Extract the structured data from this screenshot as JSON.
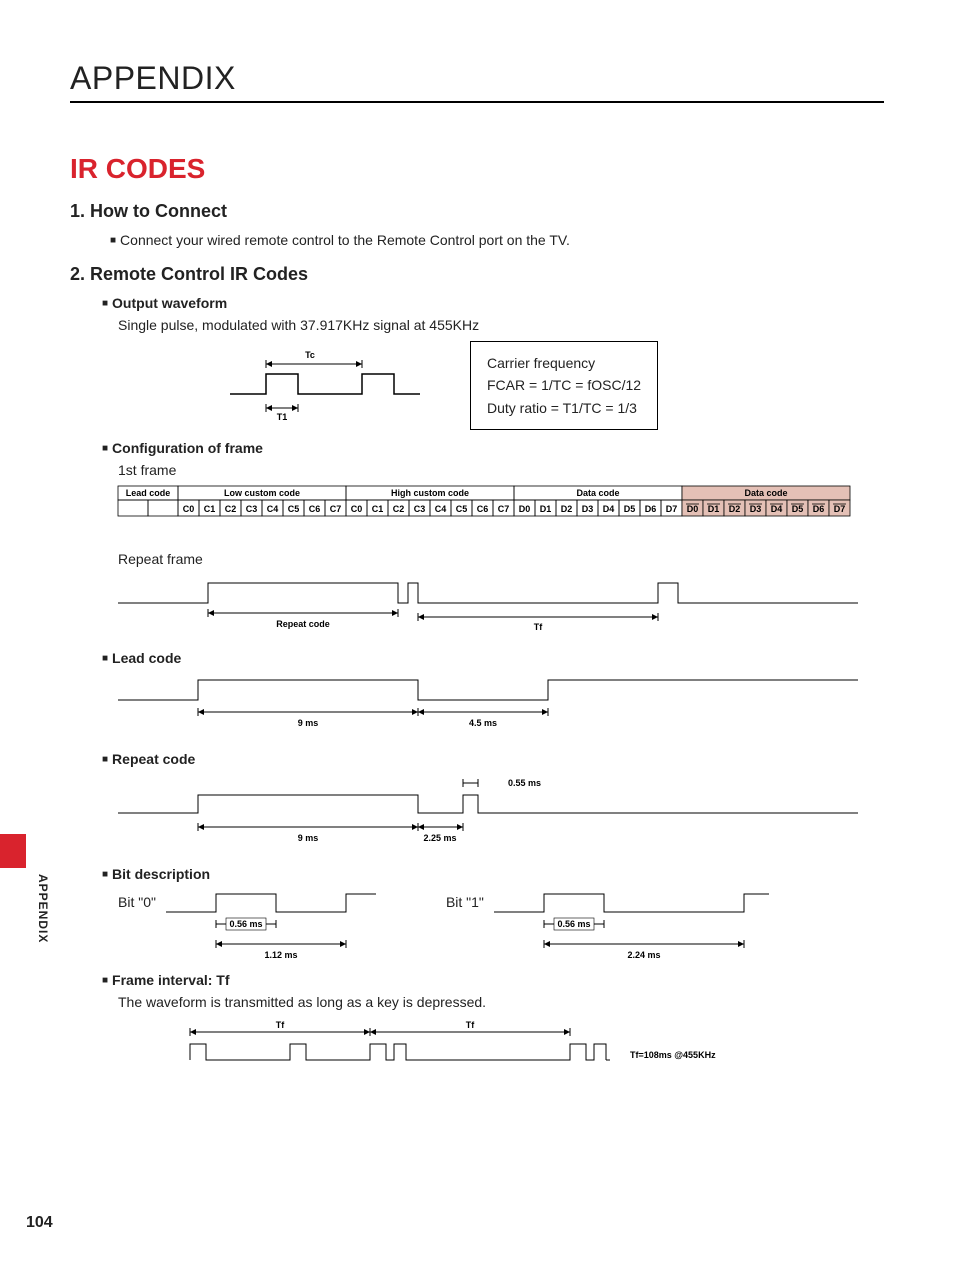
{
  "page": {
    "title": "APPENDIX",
    "section": "IR CODES",
    "page_number": "104",
    "side_label": "APPENDIX"
  },
  "s1": {
    "heading": "1. How to Connect",
    "text": "Connect your wired remote control to the Remote Control port on the TV."
  },
  "s2": {
    "heading": "2. Remote Control IR Codes",
    "p1": {
      "title": "Output waveform",
      "text": "Single pulse, modulated with 37.917KHz signal at 455KHz",
      "diagram": {
        "tc_label": "Tc",
        "t1_label": "T1",
        "box_line1": "Carrier frequency",
        "box_line2": "FCAR = 1/TC = fOSC/12",
        "box_line3": "Duty ratio = T1/TC = 1/3"
      }
    },
    "p2": {
      "title": "Configuration of frame",
      "first_frame_label": "1st frame",
      "repeat_frame_label": "Repeat frame",
      "headers": [
        "Lead code",
        "Low custom code",
        "High custom code",
        "Data code",
        "Data code"
      ],
      "bits_c": [
        "C0",
        "C1",
        "C2",
        "C3",
        "C4",
        "C5",
        "C6",
        "C7"
      ],
      "bits_d": [
        "D0",
        "D1",
        "D2",
        "D3",
        "D4",
        "D5",
        "D6",
        "D7"
      ],
      "inverted_bg": "#e4c0b6",
      "repeat_code_label": "Repeat code",
      "tf_label": "Tf"
    },
    "p3": {
      "title": "Lead code",
      "t1": "9 ms",
      "t2": "4.5 ms"
    },
    "p4": {
      "title": "Repeat code",
      "t0": "0.55 ms",
      "t1": "9 ms",
      "t2": "2.25 ms"
    },
    "p5": {
      "title": "Bit description",
      "bit0_label": "Bit \"0\"",
      "bit1_label": "Bit \"1\"",
      "pulse": "0.56 ms",
      "bit0_total": "1.12 ms",
      "bit1_total": "2.24 ms"
    },
    "p6": {
      "title": "Frame interval: Tf",
      "text": "The waveform is transmitted as long as a key is depressed.",
      "tf_label": "Tf",
      "tf_value": "Tf=108ms @455KHz"
    }
  }
}
